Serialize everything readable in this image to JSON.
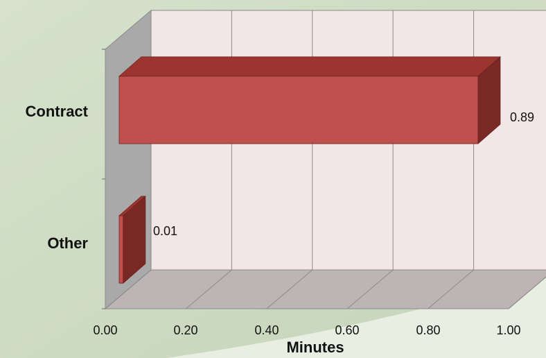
{
  "chart_data": {
    "type": "bar",
    "orientation": "horizontal",
    "style": "3d",
    "categories": [
      "Contract",
      "Other"
    ],
    "values": [
      0.89,
      0.01
    ],
    "data_labels": [
      "0.89",
      "0.01"
    ],
    "xlabel": "Minutes",
    "ylabel": "",
    "xlim": [
      0,
      1
    ],
    "x_ticks": [
      "0.00",
      "0.20",
      "0.40",
      "0.60",
      "0.80",
      "1.00"
    ],
    "grid": true,
    "legend": "none",
    "colors": {
      "bar_front": "#c0504d",
      "bar_top": "#9c3530",
      "bar_side": "#7a2824",
      "back_wall": "#f3e6e6",
      "side_wall": "#a9a9a9",
      "floor": "#bdb5b5",
      "background": "#cfdcc5"
    }
  }
}
